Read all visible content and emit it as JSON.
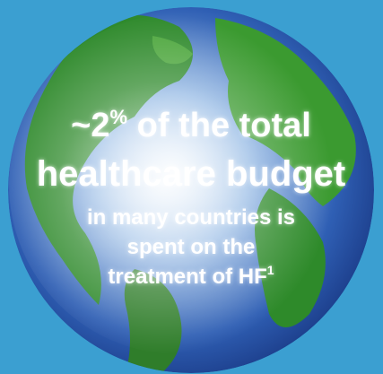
{
  "headline": {
    "lines": [
      {
        "parts": [
          "~2",
          "%",
          " of the total"
        ]
      },
      {
        "parts": [
          "healthcare budget"
        ]
      }
    ]
  },
  "body": {
    "lines": [
      {
        "parts": [
          "in many countries is"
        ]
      },
      {
        "parts": [
          "spent on the"
        ]
      },
      {
        "parts": [
          "treatment of HF",
          "1"
        ]
      }
    ]
  }
}
